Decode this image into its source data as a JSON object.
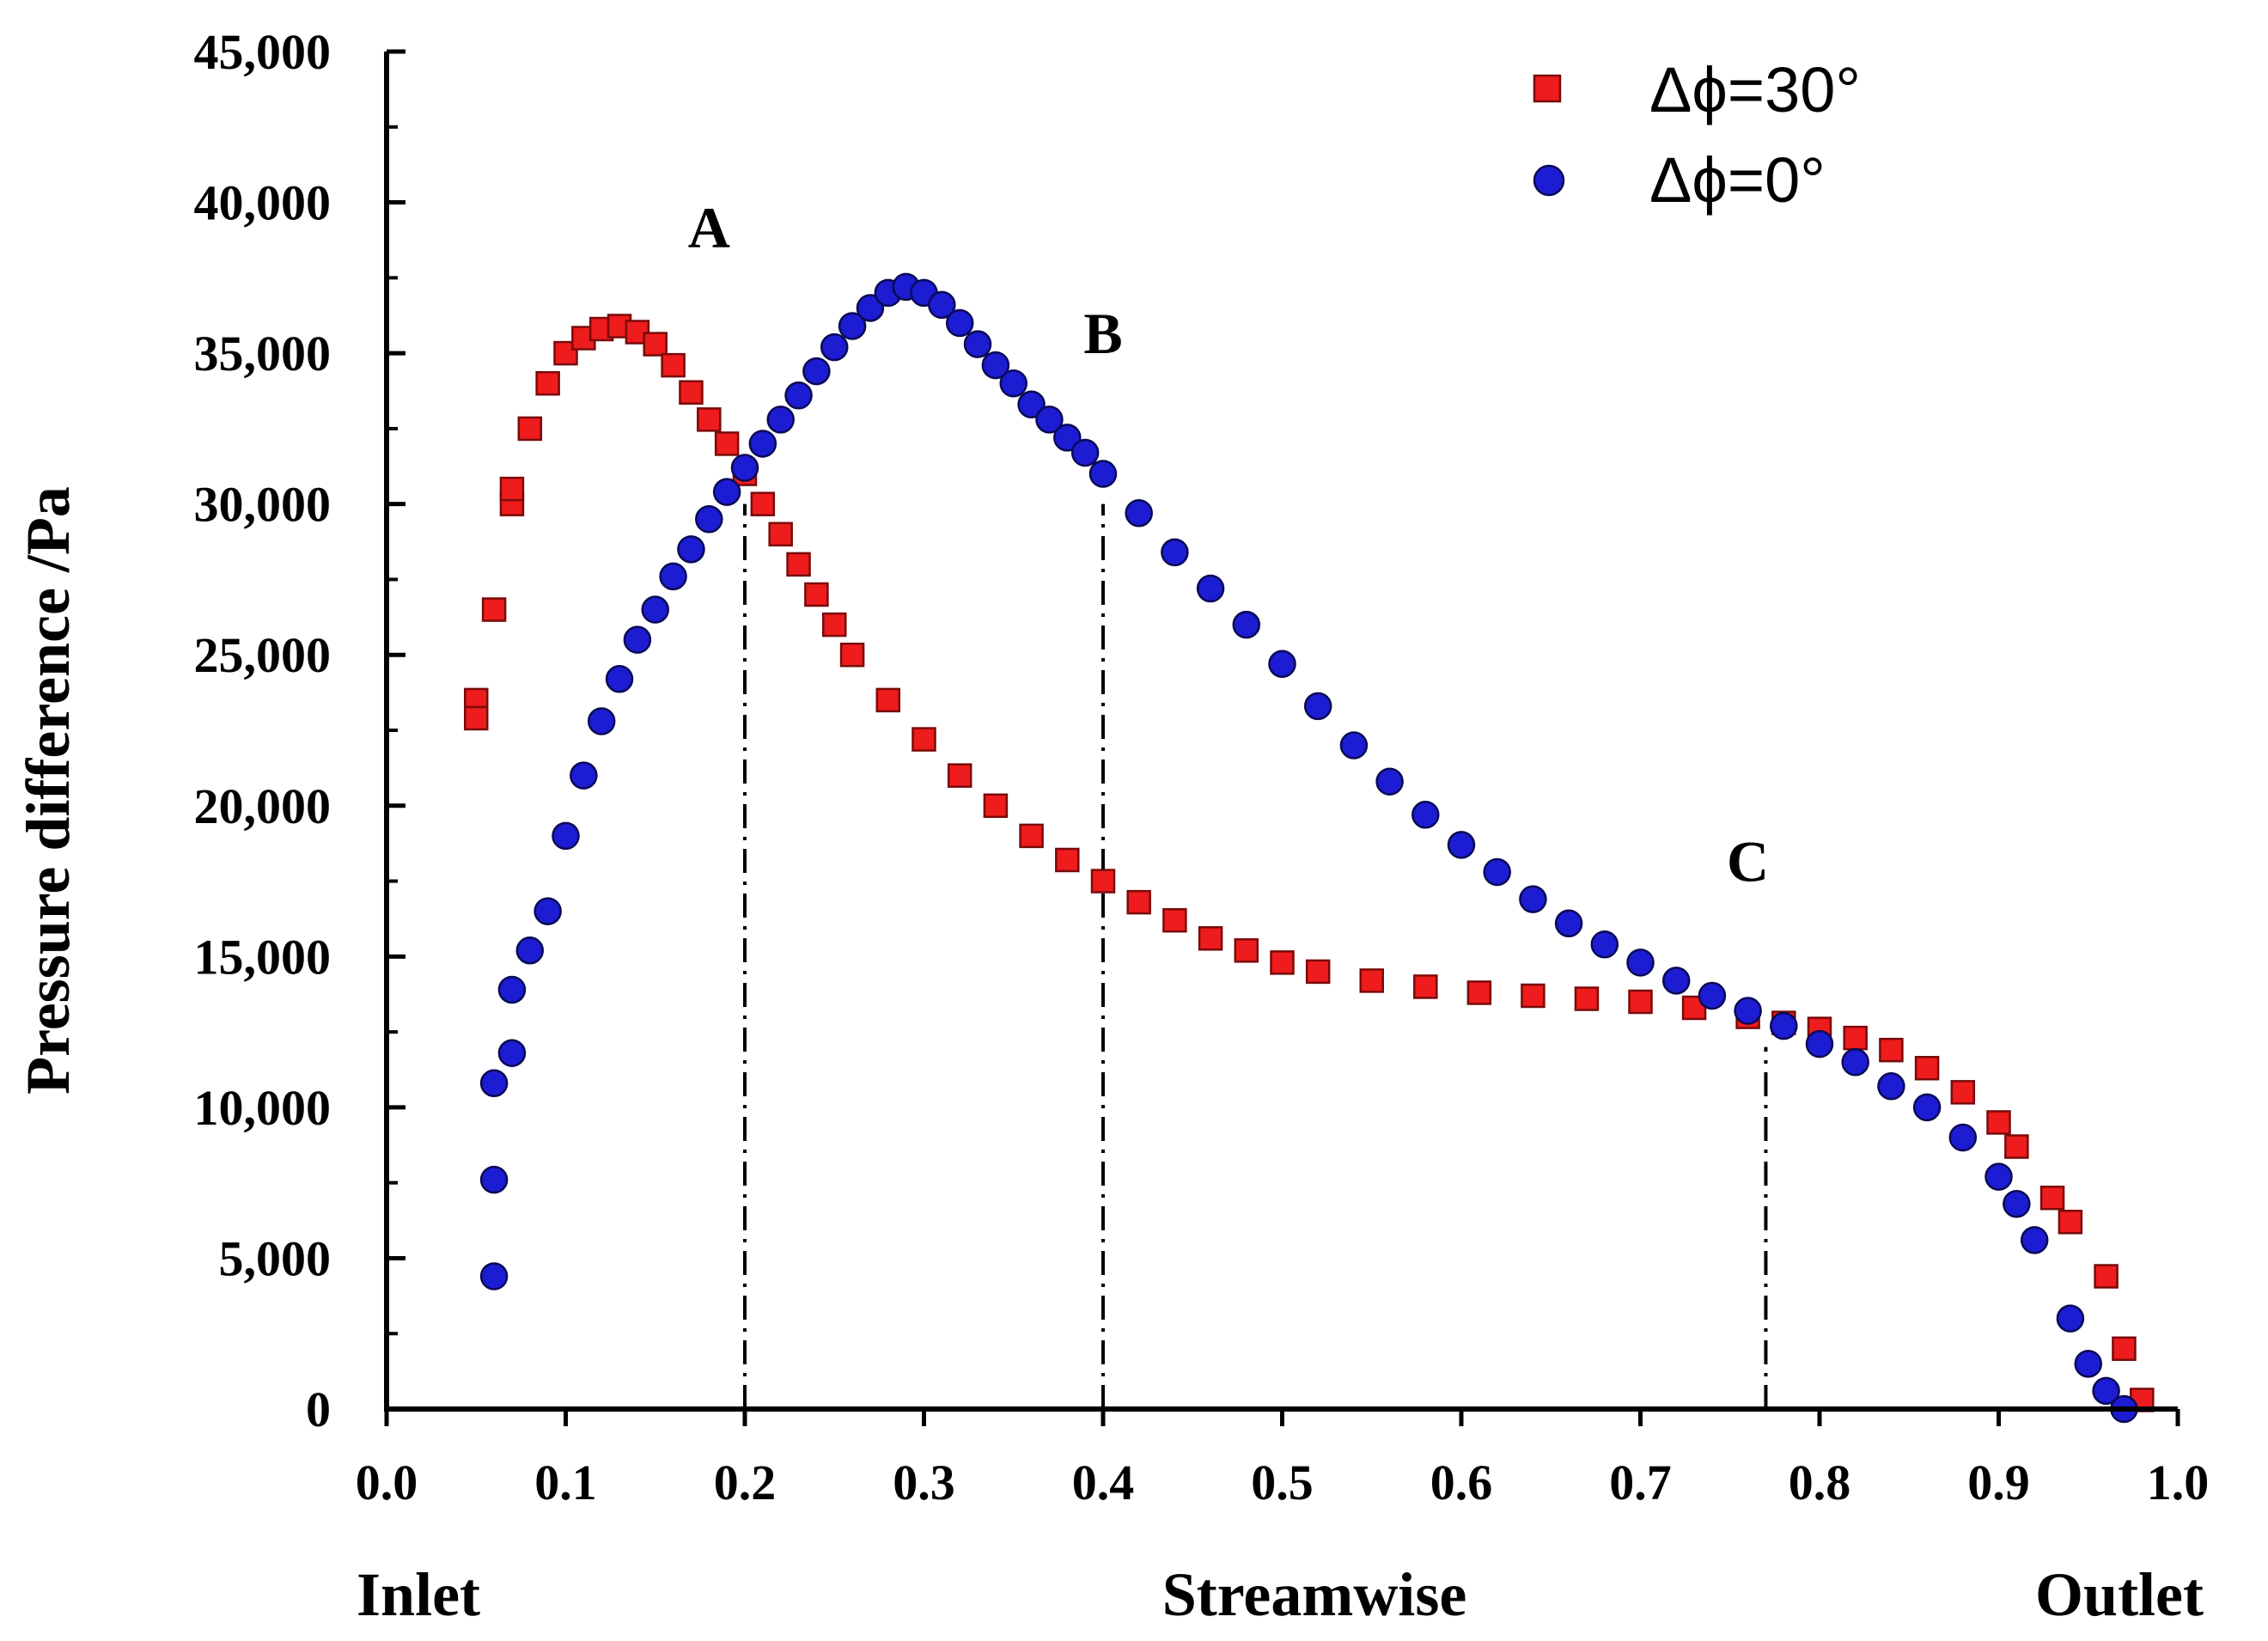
{
  "chart_data": {
    "type": "scatter",
    "title": "",
    "xlabel": "Streamwise",
    "ylabel": "Pressure difference /Pa",
    "xlim": [
      0.0,
      1.0
    ],
    "ylim": [
      0,
      45000
    ],
    "x_ticks": [
      "0.0",
      "0.1",
      "0.2",
      "0.3",
      "0.4",
      "0.5",
      "0.6",
      "0.7",
      "0.8",
      "0.9",
      "1.0"
    ],
    "y_ticks": [
      "0",
      "5,000",
      "10,000",
      "15,000",
      "20,000",
      "25,000",
      "30,000",
      "35,000",
      "40,000",
      "45,000"
    ],
    "x_end_labels": {
      "left": "Inlet",
      "right": "Outlet"
    },
    "legend": {
      "placement": "top-right",
      "entries": [
        "Δϕ=30°",
        "Δϕ=0°"
      ]
    },
    "annotations": [
      {
        "label": "A",
        "x": 0.2,
        "label_x": 0.18,
        "label_y": 38500,
        "line_top": 30000
      },
      {
        "label": "B",
        "x": 0.4,
        "label_x": 0.4,
        "label_y": 35000,
        "line_top": 30000
      },
      {
        "label": "C",
        "x": 0.77,
        "label_x": 0.76,
        "label_y": 17500,
        "line_top": 12000
      }
    ],
    "series": [
      {
        "name": "Δϕ=30°",
        "marker": "square",
        "color": "#ee1c1c",
        "points": [
          [
            0.05,
            23500
          ],
          [
            0.05,
            22900
          ],
          [
            0.06,
            26500
          ],
          [
            0.07,
            30000
          ],
          [
            0.07,
            30500
          ],
          [
            0.08,
            32500
          ],
          [
            0.09,
            34000
          ],
          [
            0.1,
            35000
          ],
          [
            0.11,
            35500
          ],
          [
            0.12,
            35800
          ],
          [
            0.13,
            35900
          ],
          [
            0.14,
            35700
          ],
          [
            0.15,
            35300
          ],
          [
            0.16,
            34600
          ],
          [
            0.17,
            33700
          ],
          [
            0.18,
            32800
          ],
          [
            0.19,
            32000
          ],
          [
            0.2,
            31000
          ],
          [
            0.21,
            30000
          ],
          [
            0.22,
            29000
          ],
          [
            0.23,
            28000
          ],
          [
            0.24,
            27000
          ],
          [
            0.25,
            26000
          ],
          [
            0.26,
            25000
          ],
          [
            0.28,
            23500
          ],
          [
            0.3,
            22200
          ],
          [
            0.32,
            21000
          ],
          [
            0.34,
            20000
          ],
          [
            0.36,
            19000
          ],
          [
            0.38,
            18200
          ],
          [
            0.4,
            17500
          ],
          [
            0.42,
            16800
          ],
          [
            0.44,
            16200
          ],
          [
            0.46,
            15600
          ],
          [
            0.48,
            15200
          ],
          [
            0.5,
            14800
          ],
          [
            0.52,
            14500
          ],
          [
            0.55,
            14200
          ],
          [
            0.58,
            14000
          ],
          [
            0.61,
            13800
          ],
          [
            0.64,
            13700
          ],
          [
            0.67,
            13600
          ],
          [
            0.7,
            13500
          ],
          [
            0.73,
            13300
          ],
          [
            0.76,
            13000
          ],
          [
            0.78,
            12800
          ],
          [
            0.8,
            12600
          ],
          [
            0.82,
            12300
          ],
          [
            0.84,
            11900
          ],
          [
            0.86,
            11300
          ],
          [
            0.88,
            10500
          ],
          [
            0.9,
            9500
          ],
          [
            0.91,
            8700
          ],
          [
            0.93,
            7000
          ],
          [
            0.94,
            6200
          ],
          [
            0.96,
            4400
          ],
          [
            0.97,
            2000
          ],
          [
            0.98,
            300
          ]
        ]
      },
      {
        "name": "Δϕ=0°",
        "marker": "circle",
        "color": "#1c1cd2",
        "points": [
          [
            0.06,
            4400
          ],
          [
            0.06,
            7600
          ],
          [
            0.06,
            10800
          ],
          [
            0.07,
            11800
          ],
          [
            0.07,
            13900
          ],
          [
            0.08,
            15200
          ],
          [
            0.09,
            16500
          ],
          [
            0.1,
            19000
          ],
          [
            0.11,
            21000
          ],
          [
            0.12,
            22800
          ],
          [
            0.13,
            24200
          ],
          [
            0.14,
            25500
          ],
          [
            0.15,
            26500
          ],
          [
            0.16,
            27600
          ],
          [
            0.17,
            28500
          ],
          [
            0.18,
            29500
          ],
          [
            0.19,
            30400
          ],
          [
            0.2,
            31200
          ],
          [
            0.21,
            32000
          ],
          [
            0.22,
            32800
          ],
          [
            0.23,
            33600
          ],
          [
            0.24,
            34400
          ],
          [
            0.25,
            35200
          ],
          [
            0.26,
            35900
          ],
          [
            0.27,
            36500
          ],
          [
            0.28,
            37000
          ],
          [
            0.29,
            37200
          ],
          [
            0.3,
            37000
          ],
          [
            0.31,
            36600
          ],
          [
            0.32,
            36000
          ],
          [
            0.33,
            35300
          ],
          [
            0.34,
            34600
          ],
          [
            0.35,
            34000
          ],
          [
            0.36,
            33300
          ],
          [
            0.37,
            32800
          ],
          [
            0.38,
            32200
          ],
          [
            0.39,
            31700
          ],
          [
            0.4,
            31000
          ],
          [
            0.42,
            29700
          ],
          [
            0.44,
            28400
          ],
          [
            0.46,
            27200
          ],
          [
            0.48,
            26000
          ],
          [
            0.5,
            24700
          ],
          [
            0.52,
            23300
          ],
          [
            0.54,
            22000
          ],
          [
            0.56,
            20800
          ],
          [
            0.58,
            19700
          ],
          [
            0.6,
            18700
          ],
          [
            0.62,
            17800
          ],
          [
            0.64,
            16900
          ],
          [
            0.66,
            16100
          ],
          [
            0.68,
            15400
          ],
          [
            0.7,
            14800
          ],
          [
            0.72,
            14200
          ],
          [
            0.74,
            13700
          ],
          [
            0.76,
            13200
          ],
          [
            0.78,
            12700
          ],
          [
            0.8,
            12100
          ],
          [
            0.82,
            11500
          ],
          [
            0.84,
            10700
          ],
          [
            0.86,
            10000
          ],
          [
            0.88,
            9000
          ],
          [
            0.9,
            7700
          ],
          [
            0.91,
            6800
          ],
          [
            0.92,
            5600
          ],
          [
            0.94,
            3000
          ],
          [
            0.95,
            1500
          ],
          [
            0.96,
            600
          ],
          [
            0.97,
            0
          ]
        ]
      }
    ]
  }
}
